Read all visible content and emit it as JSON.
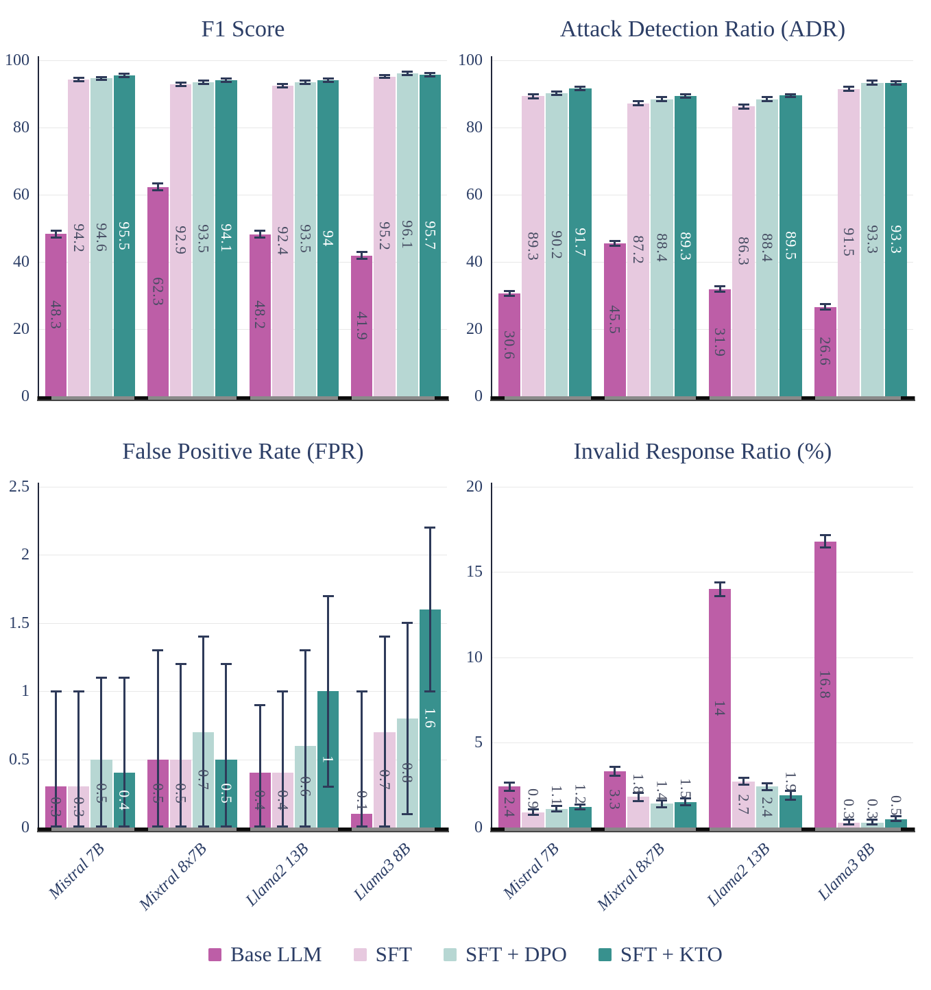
{
  "style": {
    "navy": "#2c3e66",
    "value_label": "#454b61",
    "value_label_on_teal": "#ffffff",
    "error_bar": "#2e3a59",
    "background": "#ffffff"
  },
  "legend": {
    "items": [
      {
        "label": "Base LLM",
        "color": "#bd5ea7"
      },
      {
        "label": "SFT",
        "color": "#e7c9df"
      },
      {
        "label": "SFT + DPO",
        "color": "#b7d7d3"
      },
      {
        "label": "SFT + KTO",
        "color": "#38918e"
      }
    ]
  },
  "chart_data": [
    {
      "type": "bar",
      "title": "F1 Score",
      "ylim": [
        0,
        100
      ],
      "yticks": [
        "0",
        "20",
        "40",
        "60",
        "80",
        "100"
      ],
      "grid": true,
      "legend_position": "bottom-shared",
      "categories": [
        "Mistral 7B",
        "Mixtral 8x7B",
        "Llama2 13B",
        "Llama3 8B"
      ],
      "series": [
        {
          "name": "Base LLM",
          "values": [
            48.3,
            62.3,
            48.2,
            41.9
          ],
          "labels": [
            "48.3",
            "62.3",
            "48.2",
            "41.9"
          ],
          "err_lo": [
            47.3,
            61.3,
            47.2,
            40.9
          ],
          "err_hi": [
            49.3,
            63.3,
            49.2,
            42.9
          ]
        },
        {
          "name": "SFT",
          "values": [
            94.2,
            92.9,
            92.4,
            95.2
          ],
          "labels": [
            "94.2",
            "92.9",
            "92.4",
            "95.2"
          ],
          "err_lo": [
            93.7,
            92.4,
            91.9,
            94.7
          ],
          "err_hi": [
            94.7,
            93.4,
            92.9,
            95.7
          ]
        },
        {
          "name": "SFT + DPO",
          "values": [
            94.6,
            93.5,
            93.5,
            96.1
          ],
          "labels": [
            "94.6",
            "93.5",
            "93.5",
            "96.1"
          ],
          "err_lo": [
            94.1,
            93.0,
            93.0,
            95.6
          ],
          "err_hi": [
            95.1,
            94.0,
            94.0,
            96.6
          ]
        },
        {
          "name": "SFT + KTO",
          "values": [
            95.5,
            94.1,
            94.0,
            95.7
          ],
          "labels": [
            "95.5",
            "94.1",
            "94",
            "95.7"
          ],
          "err_lo": [
            95.0,
            93.6,
            93.5,
            95.2
          ],
          "err_hi": [
            96.0,
            94.6,
            94.5,
            96.2
          ]
        }
      ]
    },
    {
      "type": "bar",
      "title": "Attack Detection Ratio (ADR)",
      "ylim": [
        0,
        100
      ],
      "yticks": [
        "0",
        "20",
        "40",
        "60",
        "80",
        "100"
      ],
      "grid": true,
      "categories": [
        "Mistral 7B",
        "Mixtral 8x7B",
        "Llama2 13B",
        "Llama3 8B"
      ],
      "series": [
        {
          "name": "Base LLM",
          "values": [
            30.6,
            45.5,
            31.9,
            26.6
          ],
          "labels": [
            "30.6",
            "45.5",
            "31.9",
            "26.6"
          ],
          "err_lo": [
            29.8,
            44.7,
            31.1,
            25.8
          ],
          "err_hi": [
            31.4,
            46.3,
            32.7,
            27.4
          ]
        },
        {
          "name": "SFT",
          "values": [
            89.3,
            87.2,
            86.3,
            91.5
          ],
          "labels": [
            "89.3",
            "87.2",
            "86.3",
            "91.5"
          ],
          "err_lo": [
            88.7,
            86.6,
            85.7,
            90.9
          ],
          "err_hi": [
            89.9,
            87.8,
            86.9,
            92.1
          ]
        },
        {
          "name": "SFT + DPO",
          "values": [
            90.2,
            88.4,
            88.4,
            93.3
          ],
          "labels": [
            "90.2",
            "88.4",
            "88.4",
            "93.3"
          ],
          "err_lo": [
            89.6,
            87.8,
            87.8,
            92.7
          ],
          "err_hi": [
            90.8,
            89.0,
            89.0,
            93.9
          ]
        },
        {
          "name": "SFT + KTO",
          "values": [
            91.7,
            89.3,
            89.5,
            93.3
          ],
          "labels": [
            "91.7",
            "89.3",
            "89.5",
            "93.3"
          ],
          "err_lo": [
            91.2,
            88.8,
            89.0,
            92.8
          ],
          "err_hi": [
            92.2,
            89.8,
            90.0,
            93.8
          ]
        }
      ]
    },
    {
      "type": "bar",
      "title": "False Positive Rate (FPR)",
      "ylim": [
        0,
        2.5
      ],
      "yticks": [
        "0",
        "0.5",
        "1",
        "1.5",
        "2",
        "2.5"
      ],
      "grid": true,
      "categories": [
        "Mistral 7B",
        "Mixtral 8x7B",
        "Llama2 13B",
        "Llama3 8B"
      ],
      "series": [
        {
          "name": "Base LLM",
          "values": [
            0.3,
            0.5,
            0.4,
            0.1
          ],
          "labels": [
            "0.3",
            "0.5",
            "0.4",
            "0.1"
          ],
          "err_lo": [
            0.01,
            0.01,
            0.01,
            0.01
          ],
          "err_hi": [
            1.0,
            1.3,
            0.9,
            1.0
          ]
        },
        {
          "name": "SFT",
          "values": [
            0.3,
            0.5,
            0.4,
            0.7
          ],
          "labels": [
            "0.3",
            "0.5",
            "0.4",
            "0.7"
          ],
          "err_lo": [
            0.01,
            0.01,
            0.01,
            0.01
          ],
          "err_hi": [
            1.0,
            1.2,
            1.0,
            1.4
          ]
        },
        {
          "name": "SFT + DPO",
          "values": [
            0.5,
            0.7,
            0.6,
            0.8
          ],
          "labels": [
            "0.5",
            "0.7",
            "0.6",
            "0.8"
          ],
          "err_lo": [
            0.01,
            0.01,
            0.01,
            0.1
          ],
          "err_hi": [
            1.1,
            1.4,
            1.3,
            1.5
          ]
        },
        {
          "name": "SFT + KTO",
          "values": [
            0.4,
            0.5,
            1.0,
            1.6
          ],
          "labels": [
            "0.4",
            "0.5",
            "1",
            "1.6"
          ],
          "err_lo": [
            0.01,
            0.01,
            0.3,
            1.0
          ],
          "err_hi": [
            1.1,
            1.2,
            1.7,
            2.2
          ]
        }
      ]
    },
    {
      "type": "bar",
      "title": "Invalid Response Ratio (%)",
      "ylim": [
        0,
        20
      ],
      "yticks": [
        "0",
        "5",
        "10",
        "15",
        "20"
      ],
      "grid": true,
      "categories": [
        "Mistral 7B",
        "Mixtral 8x7B",
        "Llama2 13B",
        "Llama3 8B"
      ],
      "series": [
        {
          "name": "Base LLM",
          "values": [
            2.4,
            3.3,
            14.0,
            16.8
          ],
          "labels": [
            "2.4",
            "3.3",
            "14",
            "16.8"
          ],
          "err_lo": [
            2.15,
            3.05,
            13.6,
            16.45
          ],
          "err_hi": [
            2.65,
            3.55,
            14.4,
            17.15
          ]
        },
        {
          "name": "SFT",
          "values": [
            0.9,
            1.8,
            2.7,
            0.3
          ],
          "labels": [
            "0.9",
            "1.8",
            "2.7",
            "0.3"
          ],
          "err_lo": [
            0.75,
            1.55,
            2.5,
            0.2
          ],
          "err_hi": [
            1.05,
            2.05,
            2.9,
            0.45
          ]
        },
        {
          "name": "SFT + DPO",
          "values": [
            1.1,
            1.4,
            2.4,
            0.3
          ],
          "labels": [
            "1.1",
            "1.4",
            "2.4",
            "0.3"
          ],
          "err_lo": [
            0.95,
            1.2,
            2.2,
            0.2
          ],
          "err_hi": [
            1.25,
            1.6,
            2.6,
            0.45
          ]
        },
        {
          "name": "SFT + KTO",
          "values": [
            1.2,
            1.5,
            1.9,
            0.5
          ],
          "labels": [
            "1.2",
            "1.5",
            "1.9",
            "0.5"
          ],
          "err_lo": [
            1.05,
            1.3,
            1.65,
            0.4
          ],
          "err_hi": [
            1.35,
            1.7,
            2.15,
            0.65
          ]
        }
      ]
    }
  ]
}
